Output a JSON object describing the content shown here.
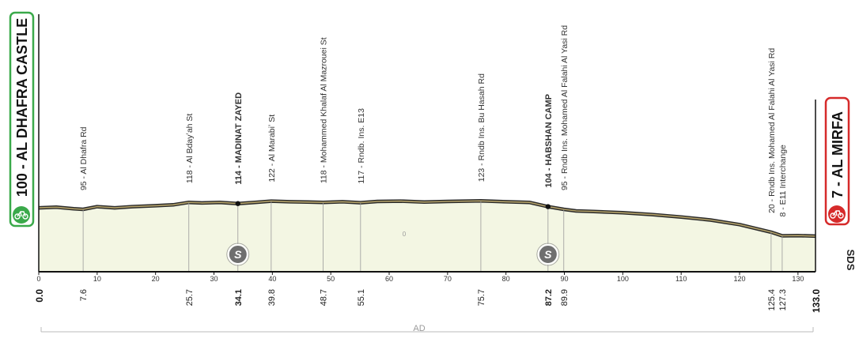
{
  "colors": {
    "area_fill": "#f3f6e3",
    "profile_line": "#2b2b2b",
    "profile_band": "#b5a36a",
    "start_badge": "#3aa94a",
    "finish_badge": "#d62a2a",
    "sprint_badge": "#6f6f6f"
  },
  "icons": {
    "start": "bicycle-icon",
    "finish": "bicycle-icon",
    "sprint": "sprint-s-icon"
  },
  "brand": "SDS",
  "start_label": "100 - AL DHAFRA CASTLE",
  "finish_label": "7 - AL MIRFA",
  "sprint_mark": "S",
  "region_label": "AD",
  "zero_label": "0",
  "chart_data": {
    "type": "area",
    "title": "",
    "xlabel": "",
    "ylabel": "",
    "xlim": [
      0,
      133
    ],
    "ylim": [
      0,
      200
    ],
    "grid": true,
    "x_ticks": [
      0,
      10,
      20,
      30,
      40,
      50,
      60,
      70,
      80,
      90,
      100,
      110,
      120,
      130
    ],
    "x_tick_labels": [
      "0",
      "10",
      "20",
      "30",
      "40",
      "50",
      "60",
      "70",
      "80",
      "90",
      "100",
      "110",
      "120",
      "130"
    ],
    "series": [
      {
        "x": [
          0,
          3,
          6,
          7.6,
          10,
          13,
          16,
          20,
          23,
          25.7,
          28,
          31,
          34.1,
          37,
          39.8,
          43,
          46,
          48.7,
          52,
          55.1,
          58,
          62,
          66,
          70,
          75.7,
          80,
          84,
          87.2,
          89.9,
          92,
          95,
          100,
          105,
          110,
          115,
          120,
          125.4,
          127.3,
          130,
          133
        ],
        "y": [
          100,
          102,
          97,
          95,
          104,
          100,
          104,
          107,
          110,
          118,
          116,
          118,
          114,
          118,
          122,
          120,
          119,
          118,
          120,
          117,
          121,
          122,
          119,
          121,
          123,
          120,
          118,
          104,
          95,
          90,
          88,
          84,
          78,
          70,
          60,
          45,
          20,
          8,
          9,
          7
        ]
      }
    ],
    "waypoints": [
      {
        "km": "7.6",
        "label": "95 - Al Dhafra Rd",
        "bold": false
      },
      {
        "km": "25.7",
        "label": "118 - Al Bdayʼah St",
        "bold": false
      },
      {
        "km": "34.1",
        "label": "114 - MADINAT ZAYED",
        "bold": true
      },
      {
        "km": "39.8",
        "label": "122 - Al Marabiʼ St",
        "bold": false
      },
      {
        "km": "48.7",
        "label": "118 - Mohammed Khalaf Al Mazrouei St",
        "bold": false
      },
      {
        "km": "55.1",
        "label": "117 - Rndb. Ins. E13",
        "bold": false
      },
      {
        "km": "75.7",
        "label": "123 - Rndb Ins. Bu Hasah Rd",
        "bold": false
      },
      {
        "km": "87.2",
        "label": "104 - HABSHAN CAMP",
        "bold": true
      },
      {
        "km": "89.9",
        "label": "95 - Rndb Ins. Mohamed Al Falahi Al Yasi Rd",
        "bold": false
      },
      {
        "km": "125.4",
        "label": "20 - Rndb Ins. Mohamed Al Falahi Al Yasi Rd",
        "bold": false
      },
      {
        "km": "127.3",
        "label": "8 - E11 Interchange",
        "bold": false
      }
    ],
    "start_km": "0.0",
    "finish_km": "133.0",
    "sprints_km": [
      34.1,
      87.2
    ]
  }
}
